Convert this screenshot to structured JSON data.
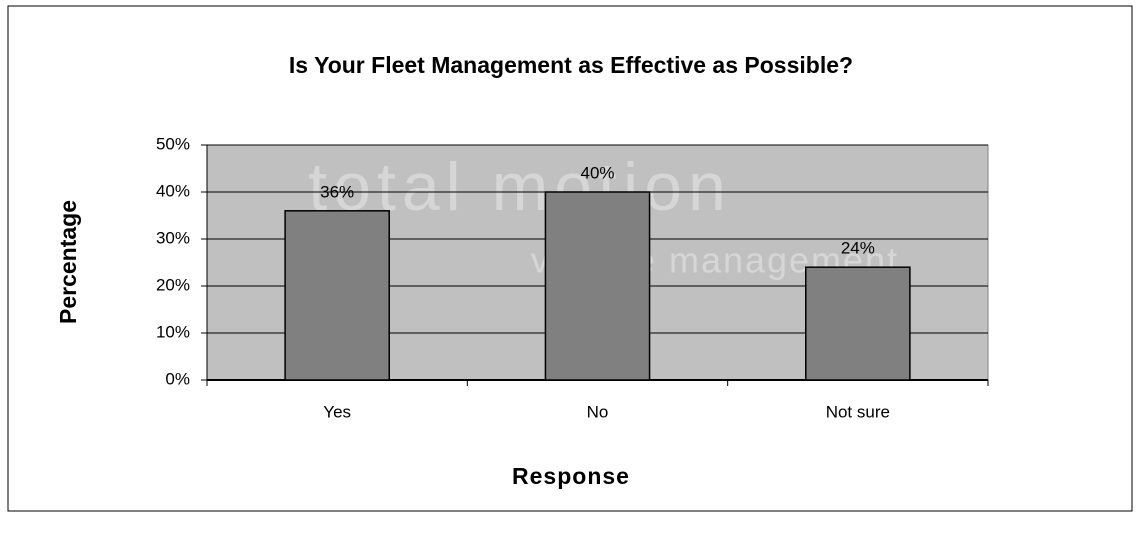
{
  "chart_data": {
    "type": "bar",
    "title": "Is Your Fleet Management as Effective as Possible?",
    "x_label": "Response",
    "y_label": "Percentage",
    "watermark": [
      "total motion",
      "vehicle management"
    ],
    "categories": [
      "Yes",
      "No",
      "Not sure"
    ],
    "values": [
      36,
      40,
      24
    ],
    "value_labels": [
      "36%",
      "40%",
      "24%"
    ],
    "color": "#808080",
    "plot_background": "#c0c0c0",
    "ylim": [
      0,
      50
    ],
    "yticks": [
      {
        "value": 0,
        "label": "0%"
      },
      {
        "value": 10,
        "label": "10%"
      },
      {
        "value": 20,
        "label": "20%"
      },
      {
        "value": 30,
        "label": "30%"
      },
      {
        "value": 40,
        "label": "40%"
      },
      {
        "value": 50,
        "label": "50%"
      }
    ],
    "grid": true
  }
}
